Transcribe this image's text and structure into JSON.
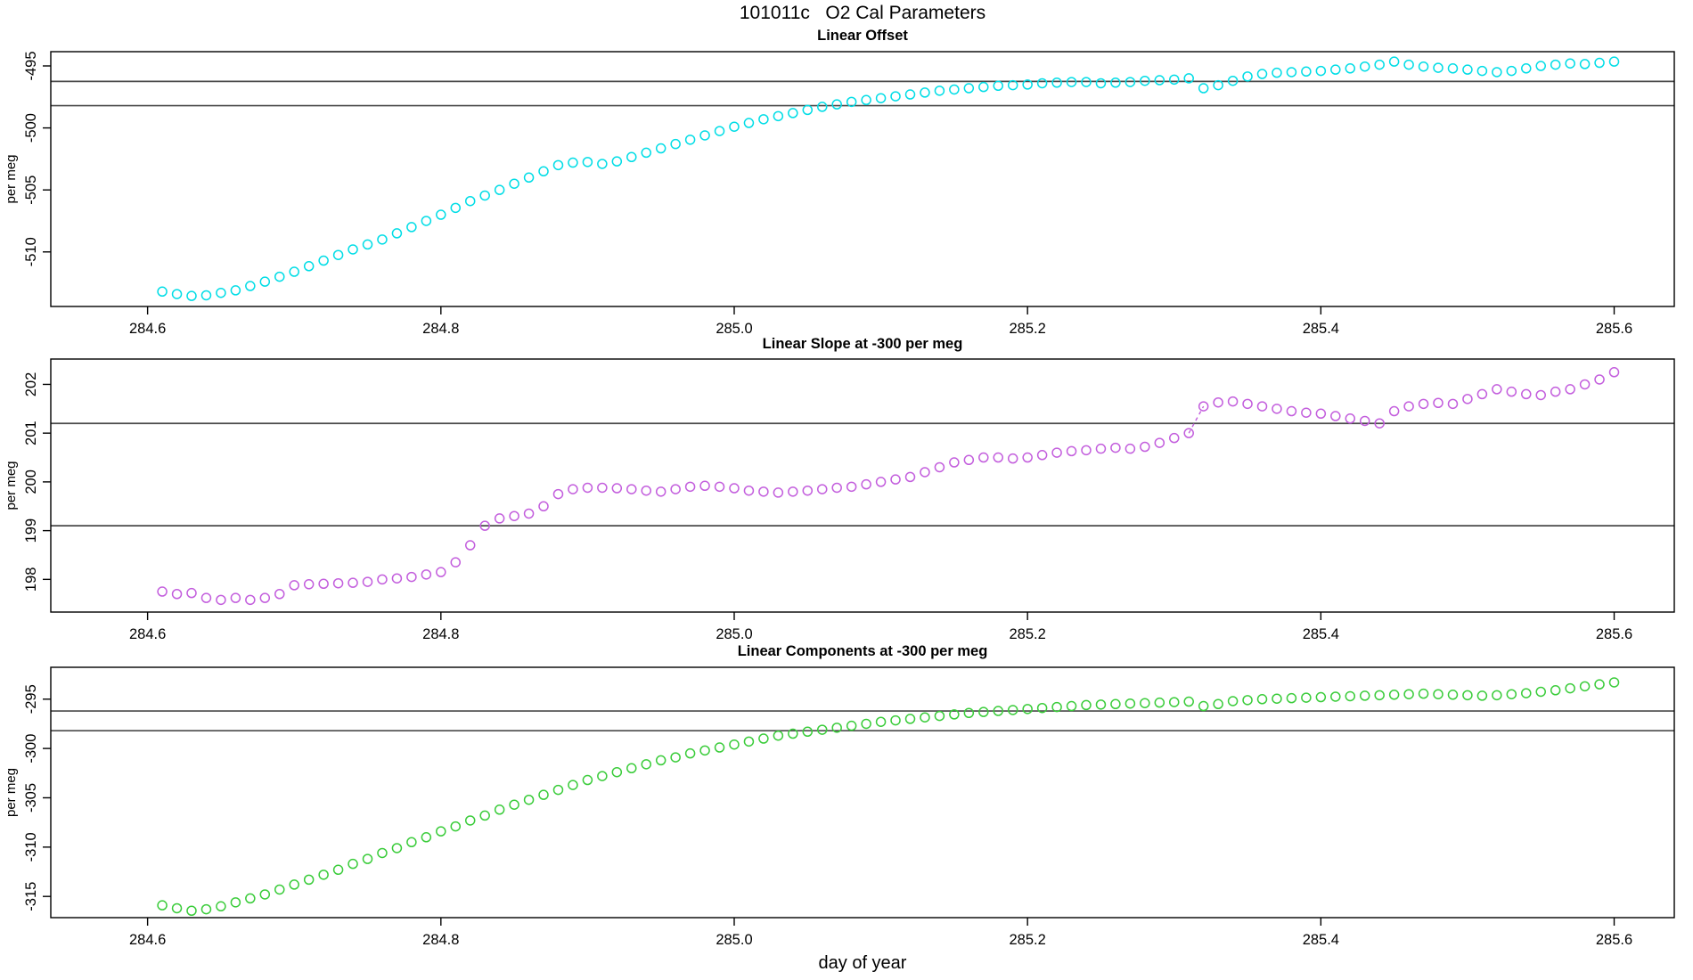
{
  "title": "101011c   O2 Cal Parameters",
  "xlabel": "day of year",
  "axis_color": "#000000",
  "ref_line_color": "#4a4a4a",
  "chart_data": [
    {
      "type": "scatter",
      "title": "Linear Offset",
      "ylabel": "per meg",
      "color": "#00dde6",
      "xlim": [
        284.534,
        285.641
      ],
      "ylim": [
        -514.4,
        -493.85
      ],
      "xtick_values": [
        284.6,
        284.8,
        285.0,
        285.2,
        285.4,
        285.6
      ],
      "xtick_labels": [
        "284.6",
        "284.8",
        "285.0",
        "285.2",
        "285.4",
        "285.6"
      ],
      "ytick_values": [
        -510,
        -505,
        -500,
        -495
      ],
      "ytick_labels": [
        "-510",
        "-505",
        "-500",
        "-495"
      ],
      "ref_lines": [
        -496.25,
        -498.2
      ],
      "x_start": 284.61,
      "x_step": 0.01,
      "values": [
        -513.2,
        -513.4,
        -513.55,
        -513.5,
        -513.3,
        -513.1,
        -512.75,
        -512.4,
        -512.0,
        -511.6,
        -511.15,
        -510.7,
        -510.25,
        -509.8,
        -509.4,
        -509.0,
        -508.5,
        -508.0,
        -507.5,
        -507.0,
        -506.45,
        -505.9,
        -505.45,
        -505.0,
        -504.5,
        -504.0,
        -503.5,
        -503.0,
        -502.8,
        -502.75,
        -502.9,
        -502.7,
        -502.35,
        -502.0,
        -501.65,
        -501.3,
        -500.95,
        -500.6,
        -500.25,
        -499.9,
        -499.6,
        -499.3,
        -499.05,
        -498.8,
        -498.55,
        -498.3,
        -498.1,
        -497.9,
        -497.75,
        -497.6,
        -497.45,
        -497.3,
        -497.15,
        -497.0,
        -496.9,
        -496.8,
        -496.7,
        -496.6,
        -496.55,
        -496.5,
        -496.4,
        -496.35,
        -496.3,
        -496.3,
        -496.4,
        -496.35,
        -496.3,
        -496.2,
        -496.15,
        -496.1,
        -496.0,
        -496.8,
        -496.55,
        -496.2,
        -495.85,
        -495.65,
        -495.55,
        -495.5,
        -495.45,
        -495.4,
        -495.3,
        -495.2,
        -495.05,
        -494.9,
        -494.65,
        -494.9,
        -495.05,
        -495.15,
        -495.2,
        -495.3,
        -495.4,
        -495.5,
        -495.4,
        -495.2,
        -495.0,
        -494.9,
        -494.8,
        -494.85,
        -494.75,
        -494.65
      ]
    },
    {
      "type": "scatter",
      "title": "Linear Slope at -300 per meg",
      "ylabel": "per meg",
      "color": "#c35edd",
      "xlim": [
        284.534,
        285.641
      ],
      "ylim": [
        197.33,
        202.52
      ],
      "xtick_values": [
        284.6,
        284.8,
        285.0,
        285.2,
        285.4,
        285.6
      ],
      "xtick_labels": [
        "284.6",
        "284.8",
        "285.0",
        "285.2",
        "285.4",
        "285.6"
      ],
      "ytick_values": [
        198,
        199,
        200,
        201,
        202
      ],
      "ytick_labels": [
        "198",
        "199",
        "200",
        "201",
        "202"
      ],
      "ref_lines": [
        201.2,
        199.1
      ],
      "x_start": 284.61,
      "x_step": 0.01,
      "connector": {
        "from_index": 70,
        "to_index": 71,
        "style": "dashed"
      },
      "values": [
        197.75,
        197.7,
        197.72,
        197.62,
        197.58,
        197.62,
        197.58,
        197.62,
        197.7,
        197.88,
        197.9,
        197.91,
        197.92,
        197.93,
        197.95,
        198.0,
        198.02,
        198.05,
        198.1,
        198.15,
        198.35,
        198.7,
        199.1,
        199.25,
        199.3,
        199.35,
        199.5,
        199.75,
        199.85,
        199.88,
        199.88,
        199.87,
        199.85,
        199.82,
        199.8,
        199.85,
        199.9,
        199.92,
        199.9,
        199.87,
        199.82,
        199.8,
        199.78,
        199.8,
        199.82,
        199.85,
        199.88,
        199.9,
        199.95,
        200.0,
        200.05,
        200.1,
        200.2,
        200.3,
        200.4,
        200.45,
        200.5,
        200.5,
        200.48,
        200.5,
        200.55,
        200.6,
        200.63,
        200.65,
        200.68,
        200.7,
        200.68,
        200.72,
        200.8,
        200.9,
        201.0,
        201.55,
        201.63,
        201.65,
        201.6,
        201.55,
        201.5,
        201.45,
        201.42,
        201.4,
        201.35,
        201.3,
        201.25,
        201.2,
        201.45,
        201.55,
        201.6,
        201.62,
        201.6,
        201.7,
        201.8,
        201.9,
        201.85,
        201.8,
        201.78,
        201.85,
        201.9,
        202.0,
        202.1,
        202.25
      ]
    },
    {
      "type": "scatter",
      "title": "Linear Components at -300 per meg",
      "ylabel": "per meg",
      "color": "#3acc3a",
      "xlim": [
        284.534,
        285.641
      ],
      "ylim": [
        -317.15,
        -291.77
      ],
      "xtick_values": [
        284.6,
        284.8,
        285.0,
        285.2,
        285.4,
        285.6
      ],
      "xtick_labels": [
        "284.6",
        "284.8",
        "285.0",
        "285.2",
        "285.4",
        "285.6"
      ],
      "ytick_values": [
        -315,
        -310,
        -305,
        -300,
        -295
      ],
      "ytick_labels": [
        "-315",
        "-310",
        "-305",
        "-300",
        "-295"
      ],
      "ref_lines": [
        -296.2,
        -298.2
      ],
      "x_start": 284.61,
      "x_step": 0.01,
      "values": [
        -315.9,
        -316.2,
        -316.45,
        -316.3,
        -316.0,
        -315.6,
        -315.2,
        -314.8,
        -314.3,
        -313.8,
        -313.3,
        -312.8,
        -312.3,
        -311.7,
        -311.2,
        -310.6,
        -310.1,
        -309.5,
        -309.0,
        -308.4,
        -307.9,
        -307.3,
        -306.8,
        -306.2,
        -305.7,
        -305.2,
        -304.7,
        -304.2,
        -303.7,
        -303.2,
        -302.8,
        -302.4,
        -302.0,
        -301.6,
        -301.2,
        -300.9,
        -300.5,
        -300.2,
        -299.9,
        -299.6,
        -299.3,
        -299.0,
        -298.7,
        -298.5,
        -298.3,
        -298.1,
        -297.9,
        -297.7,
        -297.5,
        -297.3,
        -297.15,
        -297.0,
        -296.85,
        -296.7,
        -296.55,
        -296.4,
        -296.3,
        -296.2,
        -296.1,
        -296.0,
        -295.9,
        -295.8,
        -295.7,
        -295.6,
        -295.55,
        -295.5,
        -295.45,
        -295.4,
        -295.35,
        -295.3,
        -295.25,
        -295.7,
        -295.5,
        -295.2,
        -295.1,
        -295.0,
        -294.95,
        -294.9,
        -294.85,
        -294.8,
        -294.75,
        -294.7,
        -294.65,
        -294.6,
        -294.55,
        -294.5,
        -294.45,
        -294.5,
        -294.55,
        -294.6,
        -294.65,
        -294.6,
        -294.5,
        -294.4,
        -294.25,
        -294.1,
        -293.9,
        -293.7,
        -293.5,
        -293.3
      ]
    }
  ]
}
